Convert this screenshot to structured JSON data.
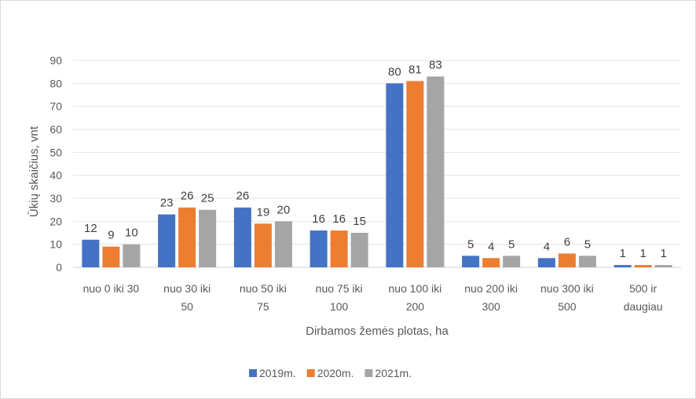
{
  "chart_data": {
    "type": "bar",
    "title": "",
    "xlabel": "Dirbamos žemės plotas, ha",
    "ylabel": "Ūkių skaičius, vnt",
    "ylim": [
      0,
      90
    ],
    "yticks": [
      "0",
      "10",
      "20",
      "30",
      "40",
      "50",
      "60",
      "70",
      "80",
      "90"
    ],
    "grid": true,
    "legend_position": "bottom",
    "categories": [
      [
        "nuo 0 iki 30"
      ],
      [
        "nuo 30 iki",
        "50"
      ],
      [
        "nuo 50 iki",
        "75"
      ],
      [
        "nuo 75 iki",
        "100"
      ],
      [
        "nuo 100 iki",
        "200"
      ],
      [
        "nuo 200 iki",
        "300"
      ],
      [
        "nuo 300 iki",
        "500"
      ],
      [
        "500 ir",
        "daugiau"
      ]
    ],
    "series": [
      {
        "name": "2019m.",
        "color": "#4472C4",
        "values": [
          12,
          23,
          26,
          16,
          80,
          5,
          4,
          1
        ]
      },
      {
        "name": "2020m.",
        "color": "#ED7D31",
        "values": [
          9,
          26,
          19,
          16,
          81,
          4,
          6,
          1
        ]
      },
      {
        "name": "2021m.",
        "color": "#A5A5A5",
        "values": [
          10,
          25,
          20,
          15,
          83,
          5,
          5,
          1
        ]
      }
    ]
  }
}
